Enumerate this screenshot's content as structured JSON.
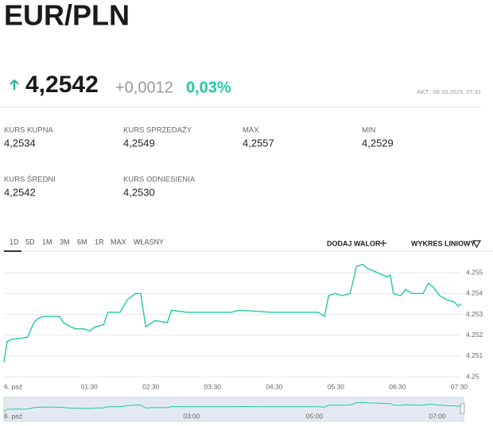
{
  "header": {
    "title": "EUR/PLN",
    "price": "4,2542",
    "change": "+0,0012",
    "change_percent": "0,03%",
    "updated": "AKT.: 06.10.2025, 07:31"
  },
  "stats": [
    {
      "label": "KURS KUPNA",
      "value": "4,2534"
    },
    {
      "label": "KURS SPRZEDAŻY",
      "value": "4,2549"
    },
    {
      "label": "MAX",
      "value": "4,2557"
    },
    {
      "label": "MIN",
      "value": "4,2529"
    },
    {
      "label": "KURS ŚREDNI",
      "value": "4,2542"
    },
    {
      "label": "KURS ODNIESIENIA",
      "value": "4,2530"
    }
  ],
  "tabs": [
    "1D",
    "5D",
    "1M",
    "3M",
    "6M",
    "1R",
    "MAX",
    "WŁASNY"
  ],
  "actions": [
    "DODAJ WALOR",
    "WYKRES LINIOWY"
  ],
  "chart_data": {
    "type": "line",
    "x": [
      "00:07",
      "00:10",
      "00:15",
      "00:30",
      "00:36",
      "00:40",
      "00:46",
      "01:01",
      "01:05",
      "01:12",
      "01:17",
      "01:25",
      "01:30",
      "01:36",
      "01:44",
      "01:48",
      "02:00",
      "02:07",
      "02:15",
      "02:20",
      "02:25",
      "02:34",
      "02:46",
      "02:50",
      "03:05",
      "03:25",
      "03:48",
      "03:56",
      "04:27",
      "04:58",
      "05:13",
      "05:19",
      "05:23",
      "05:29",
      "05:36",
      "05:44",
      "05:50",
      "05:56",
      "06:01",
      "06:11",
      "06:20",
      "06:23",
      "06:26",
      "06:33",
      "06:38",
      "06:44",
      "06:55",
      "07:00",
      "07:05",
      "07:11",
      "07:18",
      "07:25",
      "07:29",
      "07:32"
    ],
    "series": [
      {
        "color": "#22c8a8",
        "values": [
          4.2507,
          4.2517,
          4.2518,
          4.2519,
          4.2526,
          4.2528,
          4.2529,
          4.2529,
          4.2526,
          4.2524,
          4.2523,
          4.2523,
          4.2522,
          4.2524,
          4.2525,
          4.2531,
          4.2531,
          4.2537,
          4.254,
          4.254,
          4.2524,
          4.2527,
          4.2526,
          4.2532,
          4.2531,
          4.2531,
          4.2531,
          4.2532,
          4.2531,
          4.2531,
          4.2531,
          4.2529,
          4.2539,
          4.254,
          4.2539,
          4.254,
          4.2553,
          4.2554,
          4.2552,
          4.255,
          4.2548,
          4.2549,
          4.254,
          4.2539,
          4.2542,
          4.254,
          4.254,
          4.2545,
          4.2543,
          4.2539,
          4.2537,
          4.2536,
          4.2534,
          4.2535
        ]
      }
    ],
    "xlim": [
      "00:07",
      "07:32"
    ],
    "xticks": [
      {
        "value": "00:00",
        "label": "6. paź"
      },
      "01:30",
      "02:30",
      "03:30",
      "04:30",
      "05:30",
      "06:30",
      "07:30"
    ],
    "ylim": [
      4.25,
      4.256
    ],
    "yticks": [
      4.25,
      4.251,
      4.252,
      4.253,
      4.254,
      4.255
    ],
    "grid": true
  },
  "navigator": {
    "xticks": [
      {
        "value": "00:00",
        "label": "6. paź"
      },
      "03:00",
      "05:00",
      "07:00"
    ]
  }
}
